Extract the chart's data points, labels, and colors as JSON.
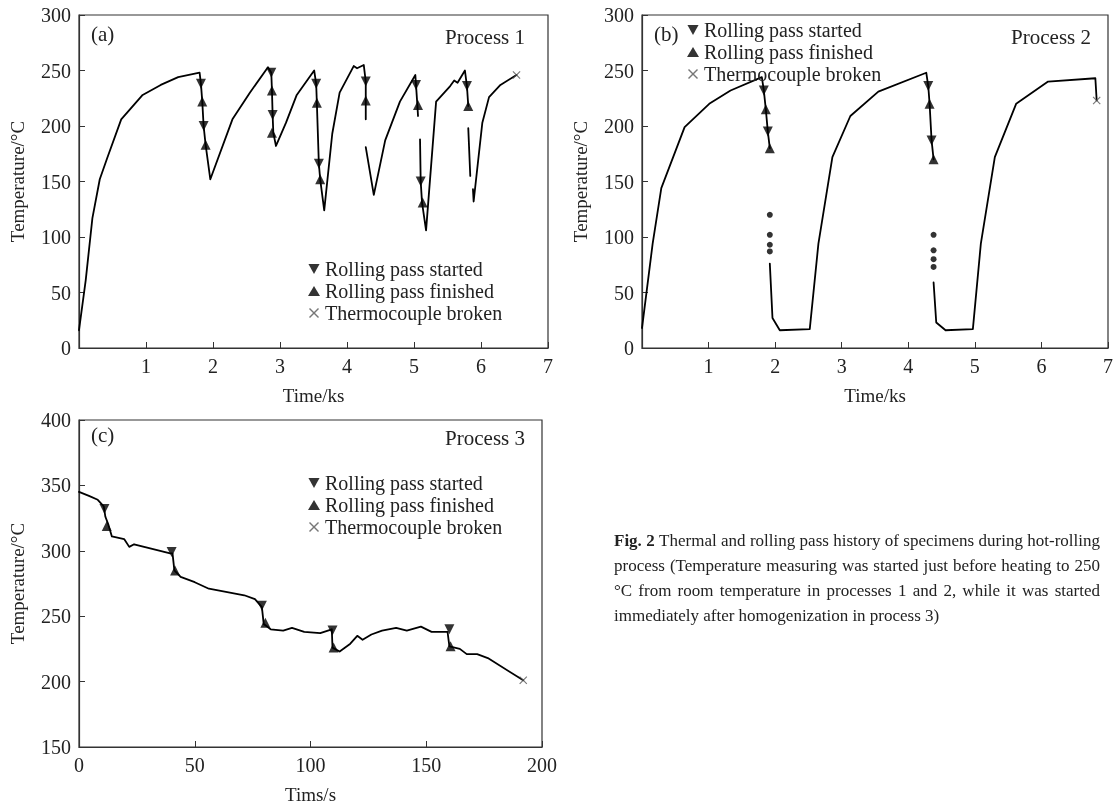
{
  "chart_data": [
    {
      "type": "line",
      "title": "Process 1",
      "annotations": [
        "(a)"
      ],
      "xlabel": "Time/ks",
      "ylabel": "Temperature/°C",
      "xlim": [
        0,
        7
      ],
      "ylim": [
        0,
        300
      ],
      "xticks": [
        1,
        2,
        3,
        4,
        5,
        6,
        7
      ],
      "yticks": [
        0,
        50,
        100,
        150,
        200,
        250,
        300
      ],
      "grid": false,
      "legend": "bottom right",
      "marker": "none",
      "line_style": "solid",
      "series": [
        {
          "color": "#000000",
          "x": [
            0,
            0.1,
            0.2,
            0.31,
            0.42,
            0.63,
            0.95,
            1.22,
            1.48,
            1.8,
            1.82,
            1.84,
            1.86,
            1.89,
            1.96,
            2.29,
            2.55,
            2.82,
            2.87,
            2.88,
            2.89,
            2.9,
            2.94,
            3.09,
            3.25,
            3.51,
            3.54,
            3.55,
            3.58,
            3.6,
            3.66,
            3.78,
            3.89,
            4.1,
            4.15,
            4.25,
            4.28,
            4.28,
            null,
            4.28,
            4.4,
            4.57,
            4.79,
            5.02,
            5.03,
            5.05,
            5.06,
            null,
            5.09,
            5.1,
            5.12,
            5.18,
            5.33,
            5.54,
            5.6,
            5.65,
            5.76,
            5.79,
            5.81,
            null,
            5.81,
            5.84,
            null,
            5.88,
            5.89,
            6.02,
            6.12,
            6.29,
            6.53
          ],
          "values": [
            16,
            61,
            117,
            152,
            171,
            206,
            228,
            237,
            244,
            248,
            238,
            222,
            200,
            183,
            152,
            206,
            230,
            253,
            248,
            232,
            210,
            194,
            182,
            203,
            228,
            250,
            238,
            221,
            166,
            152,
            124,
            193,
            230,
            254,
            252,
            255,
            240,
            206,
            null,
            181,
            138,
            187,
            222,
            246,
            237,
            219,
            209,
            null,
            188,
            150,
            131,
            106,
            222,
            236,
            241,
            239,
            250,
            236,
            218,
            null,
            198,
            155,
            null,
            143,
            132,
            203,
            226,
            237,
            246
          ]
        },
        {
          "type": "scatter",
          "name": "Rolling pass started",
          "marker": "triangle-down",
          "color": "#000000",
          "x": [
            1.82,
            1.86,
            2.87,
            2.89,
            3.54,
            3.58,
            4.28,
            5.03,
            5.1,
            5.79
          ],
          "values": [
            238,
            200,
            248,
            210,
            238,
            166,
            240,
            237,
            150,
            236
          ]
        },
        {
          "type": "scatter",
          "name": "Rolling pass finished",
          "marker": "triangle",
          "color": "#000000",
          "x": [
            1.84,
            1.89,
            2.88,
            2.88,
            3.55,
            3.6,
            4.28,
            5.06,
            5.13,
            5.81
          ],
          "values": [
            222,
            183,
            232,
            194,
            221,
            152,
            223,
            219,
            131,
            218
          ]
        },
        {
          "type": "scatter",
          "name": "Thermocouple broken",
          "marker": "cross",
          "color": "#555555",
          "x": [
            6.53
          ],
          "values": [
            246
          ]
        }
      ]
    },
    {
      "type": "line",
      "title": "Process 2",
      "annotations": [
        "(b)"
      ],
      "xlabel": "Time/ks",
      "ylabel": "Temperature/°C",
      "xlim": [
        0,
        7
      ],
      "ylim": [
        0,
        300
      ],
      "xticks": [
        1,
        2,
        3,
        4,
        5,
        6,
        7
      ],
      "yticks": [
        0,
        50,
        100,
        150,
        200,
        250,
        300
      ],
      "grid": false,
      "legend": "top left",
      "marker": "none",
      "line_style": "solid",
      "series": [
        {
          "color": "#000000",
          "x": [
            0,
            0.16,
            0.29,
            0.64,
            1.01,
            1.33,
            1.8,
            1.83,
            1.86,
            1.89,
            1.92,
            null,
            1.92,
            1.96,
            2.07,
            2.52,
            2.65,
            2.86,
            3.13,
            3.55,
            4.27,
            4.3,
            4.32,
            4.35,
            4.38,
            null,
            4.38,
            4.42,
            4.56,
            4.97,
            5.09,
            5.3,
            5.62,
            6.1,
            6.81,
            6.83
          ],
          "values": [
            18,
            94,
            144,
            199,
            220,
            232,
            244,
            232,
            215,
            195,
            180,
            null,
            76,
            27,
            16,
            17,
            94,
            172,
            209,
            231,
            248,
            236,
            220,
            187,
            170,
            null,
            59,
            23,
            16,
            17,
            94,
            172,
            220,
            240,
            243,
            223
          ]
        },
        {
          "type": "scatter",
          "marker": "circle",
          "color": "#000000",
          "x": [
            1.92,
            1.92,
            1.92,
            1.92,
            4.38,
            4.38,
            4.38,
            4.38
          ],
          "values": [
            120,
            102,
            93,
            87,
            102,
            88,
            80,
            73
          ]
        },
        {
          "type": "scatter",
          "name": "Rolling pass started",
          "marker": "triangle-down",
          "color": "#000000",
          "x": [
            1.83,
            1.89,
            4.3,
            4.35
          ],
          "values": [
            232,
            195,
            236,
            187
          ]
        },
        {
          "type": "scatter",
          "name": "Rolling pass finished",
          "marker": "triangle",
          "color": "#000000",
          "x": [
            1.86,
            1.92,
            4.32,
            4.38
          ],
          "values": [
            215,
            180,
            220,
            170
          ]
        },
        {
          "type": "scatter",
          "name": "Thermocouple broken",
          "marker": "cross",
          "color": "#555555",
          "x": [
            6.83
          ],
          "values": [
            223
          ]
        }
      ]
    },
    {
      "type": "line",
      "title": "Process 3",
      "annotations": [
        "(c)"
      ],
      "xlabel": "Tims/s",
      "ylabel": "Temperature/°C",
      "xlim": [
        0,
        200
      ],
      "ylim": [
        150,
        400
      ],
      "xticks": [
        0,
        50,
        100,
        150,
        200
      ],
      "yticks": [
        150,
        200,
        250,
        300,
        350,
        400
      ],
      "grid": false,
      "legend": "top right",
      "marker": "none",
      "line_style": "solid",
      "series": [
        {
          "color": "#000000",
          "x": [
            0,
            4.3,
            8.1,
            10.7,
            11.4,
            12.7,
            14.2,
            19.5,
            21.7,
            23.8,
            39.4,
            40.4,
            41.2,
            43.9,
            50,
            56.1,
            71.4,
            76,
            79,
            79.8,
            82.8,
            88.2,
            92,
            97.3,
            104.2,
            109.2,
            109.5,
            112.6,
            117.2,
            120.2,
            122.5,
            126.3,
            130.9,
            137,
            141.6,
            147.7,
            152.3,
            159.2,
            160,
            164.5,
            167.5,
            172,
            176.6,
            191.9
          ],
          "values": [
            345,
            342,
            339,
            334,
            326,
            320,
            311,
            309,
            303,
            305,
            298,
            298,
            285,
            280,
            276,
            271,
            266,
            263,
            257,
            244,
            240,
            239,
            241,
            238,
            237,
            240,
            226,
            223,
            229,
            235,
            232,
            236,
            239,
            241,
            239,
            242,
            238,
            238,
            227,
            225,
            221,
            221,
            218,
            201
          ]
        },
        {
          "type": "scatter",
          "name": "Rolling pass started",
          "marker": "triangle-down",
          "color": "#000000",
          "x": [
            11,
            40,
            79,
            109.5,
            160
          ],
          "values": [
            332,
            299,
            258,
            239,
            240
          ]
        },
        {
          "type": "scatter",
          "name": "Rolling pass finished",
          "marker": "triangle",
          "color": "#000000",
          "x": [
            12,
            41.5,
            80.5,
            110,
            160.5
          ],
          "values": [
            319,
            285,
            245,
            226,
            227
          ]
        },
        {
          "type": "scatter",
          "name": "Thermocouple broken",
          "marker": "cross",
          "color": "#555555",
          "x": [
            191.9
          ],
          "values": [
            201
          ]
        }
      ]
    },
    {
      "type": "other",
      "annotations": [
        "Fig. 2",
        "Thermal and rolling pass history of specimens during hot-rolling process (Temperature measuring was started just before heating to 250 °C from room temperature in processes 1 and 2, while it was started immediately after homogenization in process 3)"
      ]
    }
  ]
}
